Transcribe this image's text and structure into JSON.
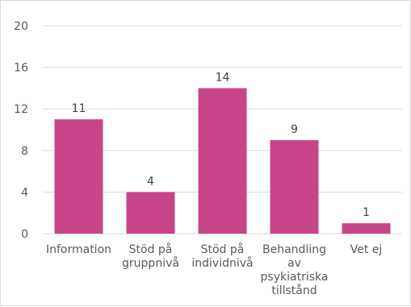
{
  "chart_data": {
    "type": "bar",
    "categories": [
      [
        "Information"
      ],
      [
        "Stöd på",
        "gruppnivå"
      ],
      [
        "Stöd på",
        "individnivå"
      ],
      [
        "Behandling",
        "av",
        "psykiatriska",
        "tillstånd"
      ],
      [
        "Vet ej"
      ]
    ],
    "values": [
      11,
      4,
      14,
      9,
      1
    ],
    "ylim": [
      0,
      20
    ],
    "yticks": [
      0,
      4,
      8,
      12,
      16,
      20
    ],
    "grid": true,
    "bar_color": "#c9458a",
    "grid_color": "#d9d9d9",
    "title": "",
    "xlabel": "",
    "ylabel": ""
  }
}
